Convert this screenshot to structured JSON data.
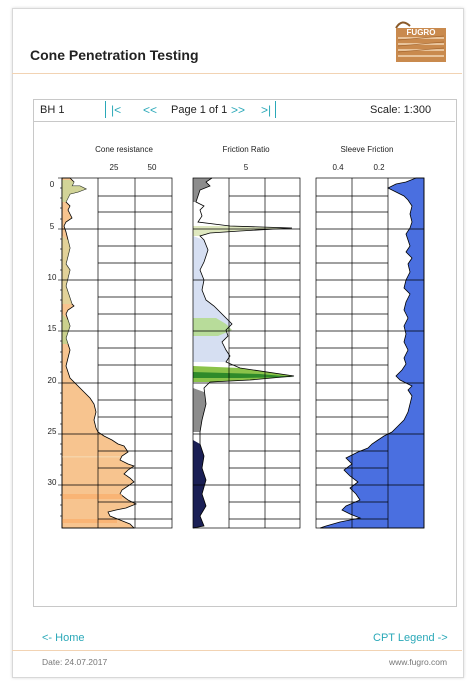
{
  "header": {
    "title": "Cone Penetration Testing",
    "logo_text": "FUGRO"
  },
  "toolbar": {
    "borehole": "BH 1",
    "first": "|<",
    "prev": "<<",
    "page": "Page 1 of 1",
    "next": ">>",
    "last": ">|",
    "scale": "Scale: 1:300"
  },
  "plots": {
    "cone": {
      "title": "Cone resistance",
      "ticks": [
        "25",
        "50"
      ]
    },
    "friction": {
      "title": "Friction Ratio",
      "ticks": [
        "5"
      ]
    },
    "sleeve": {
      "title": "Sleeve Friction",
      "ticks": [
        "0.4",
        "0.2"
      ]
    },
    "depth_ticks": [
      "0",
      "5",
      "10",
      "15",
      "20",
      "25",
      "30"
    ]
  },
  "footer": {
    "home": "<- Home",
    "legend": "CPT Legend ->",
    "date": "Date: 24.07.2017",
    "website": "www.fugro.com"
  },
  "colors": {
    "accent": "#2aa8b8",
    "sand_fill": "#f7c48f",
    "green_fill": "#8bc34a",
    "blue_fill": "#4a6fe0",
    "dark_fill": "#1a1f55"
  }
}
